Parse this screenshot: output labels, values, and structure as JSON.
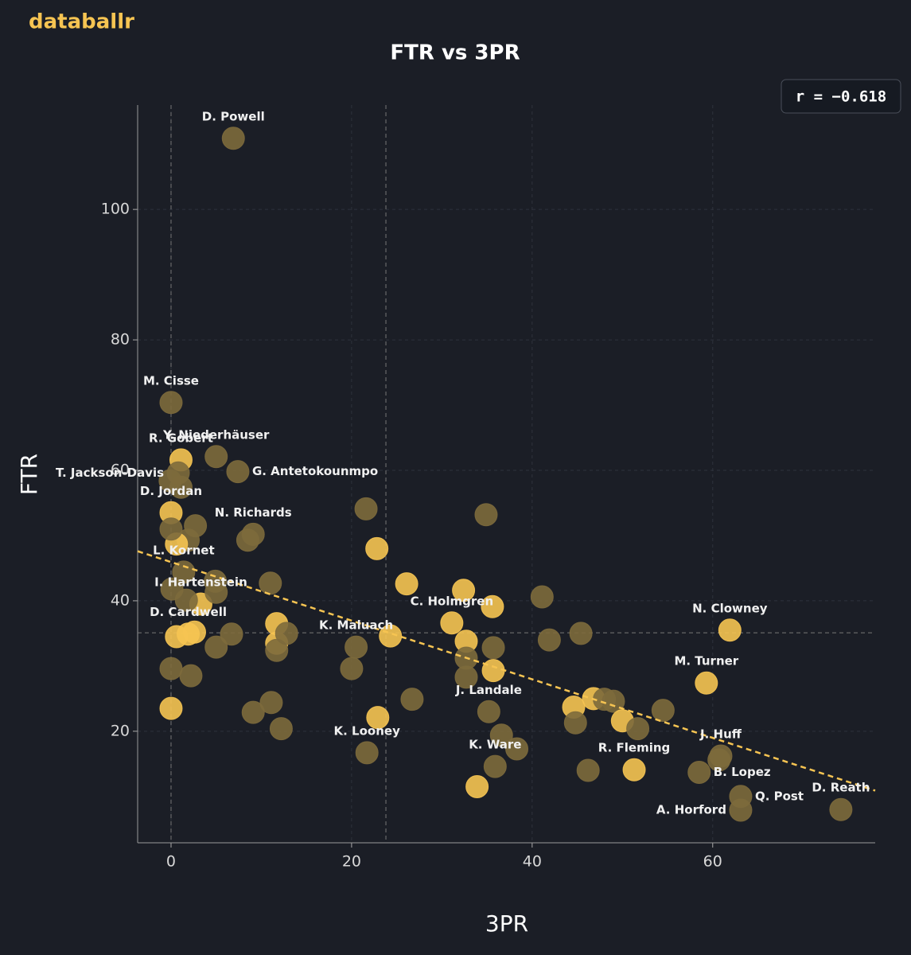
{
  "brand": "databallr",
  "chart_data": {
    "type": "scatter",
    "title": "FTR vs 3PR",
    "x_label": "3PR",
    "y_label": "FTR",
    "annotation": "r = −0.618",
    "xlim": [
      -3.7,
      78
    ],
    "ylim": [
      2.9,
      116
    ],
    "xticks": [
      0,
      20,
      40,
      60
    ],
    "yticks": [
      20,
      40,
      60,
      80,
      100
    ],
    "grid": true,
    "reference_lines": {
      "x": [
        0,
        23.8
      ],
      "y": [
        35.1
      ]
    },
    "trend": {
      "x": [
        -3.7,
        78
      ],
      "y": [
        47.6,
        10.9
      ],
      "color": "#f6c452"
    },
    "labels": [
      "D. Powell",
      "M. Cisse",
      "R. Gobert",
      "Y. Niederhäuser",
      "G. Antetokounmpo",
      "T. Jackson-Davis",
      "D. Jordan",
      "N. Richards",
      "L. Kornet",
      "I. Hartenstein",
      "D. Cardwell",
      "K. Maluach",
      "C. Holmgren",
      "N. Clowney",
      "M. Turner",
      "J. Landale",
      "K. Looney",
      "K. Ware",
      "J. Huff",
      "R. Fleming",
      "B. Lopez",
      "Q. Post",
      "A. Horford",
      "D. Reath",
      null,
      null,
      null,
      null,
      null,
      null,
      null,
      null,
      null,
      null,
      null,
      null,
      null,
      null,
      null,
      null,
      null,
      null,
      null,
      null,
      null,
      null,
      null,
      null,
      null,
      null,
      null,
      null,
      null,
      null,
      null,
      null,
      null,
      null,
      null,
      null,
      null,
      null,
      null,
      null,
      null,
      null,
      null,
      null,
      null,
      null,
      null,
      null,
      null,
      null,
      null,
      null,
      null,
      null,
      null,
      null,
      null
    ],
    "x": [
      6.9,
      0,
      1.1,
      5.0,
      7.4,
      0.8,
      0,
      9.1,
      1.4,
      3.3,
      1.9,
      20.5,
      31.1,
      61.9,
      59.3,
      35.2,
      21.7,
      35.9,
      60.9,
      51.3,
      58.5,
      63.1,
      63.1,
      74.2,
      0,
      0,
      2.2,
      0.6,
      2.6,
      0.1,
      1.7,
      5.0,
      4.9,
      2.7,
      1.9,
      0.6,
      0,
      1.1,
      -0.1,
      8.5,
      6.7,
      5.0,
      11,
      11.7,
      11.7,
      11.7,
      12.8,
      9.1,
      11.1,
      12.2,
      21.6,
      22.8,
      20,
      22.9,
      24.3,
      26.1,
      26.7,
      34.9,
      32.4,
      35.6,
      32.7,
      32.7,
      32.7,
      35.7,
      35.7,
      36.6,
      38.3,
      33.9,
      41.1,
      41.9,
      45.4,
      44.6,
      44.8,
      46.8,
      48,
      49,
      50,
      51.7,
      46.2,
      54.5,
      60.7
    ],
    "y": [
      110.9,
      70.4,
      61.6,
      62.1,
      59.8,
      59.6,
      53.5,
      50.2,
      44.4,
      39.5,
      34.9,
      32.9,
      36.6,
      35.5,
      27.4,
      23.0,
      16.7,
      14.6,
      16.2,
      14.1,
      13.7,
      10.0,
      7.9,
      8.0,
      23.5,
      29.6,
      28.5,
      34.5,
      35.2,
      41.8,
      40.1,
      41.3,
      43.0,
      51.5,
      49.3,
      48.7,
      51,
      57.4,
      58.4,
      49.3,
      34.9,
      32.9,
      42.7,
      36.5,
      33.5,
      32.4,
      35,
      22.9,
      24.4,
      20.4,
      54.1,
      48,
      29.6,
      22.1,
      34.6,
      42.6,
      24.9,
      53.2,
      41.6,
      39.1,
      33.8,
      31.2,
      28.3,
      32.8,
      29.3,
      19.4,
      17.3,
      11.5,
      40.6,
      34,
      35,
      23.7,
      21.3,
      25,
      24.9,
      24.6,
      21.6,
      20.4,
      14.0,
      23.2,
      15.6
    ],
    "colors": [
      "#7d6a3c",
      "#7d6a3c",
      "#f6c452",
      "#7d6a3c",
      "#7d6a3c",
      "#7d6a3c",
      "#f6c452",
      "#7d6a3c",
      "#7d6a3c",
      "#f6c452",
      "#f6c452",
      "#7d6a3c",
      "#f6c452",
      "#f6c452",
      "#f6c452",
      "#7d6a3c",
      "#7d6a3c",
      "#7d6a3c",
      "#7d6a3c",
      "#f6c452",
      "#7d6a3c",
      "#7d6a3c",
      "#7d6a3c",
      "#7d6a3c",
      "#f6c452",
      "#7d6a3c",
      "#7d6a3c",
      "#f6c452",
      "#f6c452",
      "#7d6a3c",
      "#7d6a3c",
      "#7d6a3c",
      "#7d6a3c",
      "#7d6a3c",
      "#7d6a3c",
      "#f6c452",
      "#7d6a3c",
      "#7d6a3c",
      "#7d6a3c",
      "#7d6a3c",
      "#7d6a3c",
      "#7d6a3c",
      "#7d6a3c",
      "#f6c452",
      "#f6c452",
      "#7d6a3c",
      "#7d6a3c",
      "#7d6a3c",
      "#7d6a3c",
      "#7d6a3c",
      "#7d6a3c",
      "#f6c452",
      "#7d6a3c",
      "#f6c452",
      "#f6c452",
      "#f6c452",
      "#7d6a3c",
      "#7d6a3c",
      "#f6c452",
      "#f6c452",
      "#f6c452",
      "#7d6a3c",
      "#7d6a3c",
      "#7d6a3c",
      "#f6c452",
      "#7d6a3c",
      "#7d6a3c",
      "#f6c452",
      "#7d6a3c",
      "#7d6a3c",
      "#7d6a3c",
      "#f6c452",
      "#7d6a3c",
      "#f6c452",
      "#7d6a3c",
      "#7d6a3c",
      "#f6c452",
      "#7d6a3c",
      "#7d6a3c",
      "#7d6a3c",
      "#7d6a3c"
    ]
  }
}
